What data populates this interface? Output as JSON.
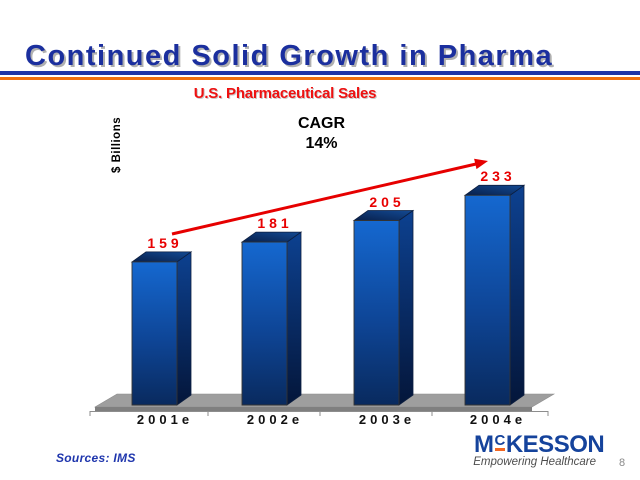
{
  "slide": {
    "title": "Continued Solid Growth in Pharma",
    "source_note": "Sources:  IMS",
    "page_number": "8"
  },
  "chart_data": {
    "type": "bar",
    "title": "U.S. Pharmaceutical Sales",
    "ylabel": "$ Billions",
    "categories": [
      "2001e",
      "2002e",
      "2003e",
      "2004e"
    ],
    "values": [
      159,
      181,
      205,
      233
    ],
    "annotation_label": "CAGR",
    "annotation_value": "14%",
    "trend_arrow": "rising left-to-right",
    "ylim": [
      0,
      260
    ],
    "grid": false,
    "legend": false
  },
  "logo": {
    "brand_prefix": "M",
    "brand_superscript": "C",
    "brand_suffix": "KESSON",
    "tagline": "Empowering Healthcare"
  },
  "colors": {
    "title_navy": "#1b2f9e",
    "rule_blue": "#1d34a8",
    "rule_orange": "#f07010",
    "subtitle_red": "#ee1111",
    "value_label_red": "#e80000",
    "arrow_red": "#e60000",
    "bar_front_top": "#1568d0",
    "bar_front_bottom": "#092a5e",
    "floor_gray": "#9e9e9e",
    "logo_navy": "#15439c",
    "logo_orange": "#f26722"
  }
}
